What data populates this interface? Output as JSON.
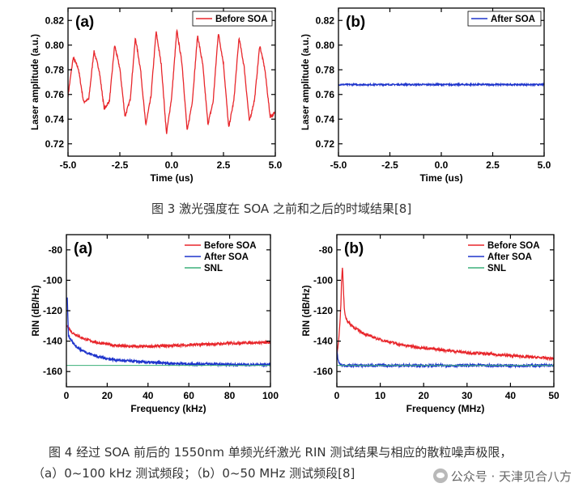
{
  "captions": {
    "fig3": "图 3  激光强度在 SOA 之前和之后的时域结果[8]",
    "fig4_line1": "图 4  经过 SOA 前后的 1550nm 单频光纤激光 RIN  测试结果与相应的散粒噪声极限，",
    "fig4_line2": "（a）0~100 kHz  测试频段；（b）0~50 MHz  测试频段[8]"
  },
  "watermark": {
    "icon": "wechat-public-account-icon",
    "text": "公众号 · 天津见合八方"
  },
  "colors": {
    "red": "#e8262b",
    "blue": "#1f35cc",
    "green": "#3cb17a",
    "axis": "#000000"
  },
  "chart_data": [
    {
      "id": "fig3a",
      "type": "line",
      "panel_label": "(a)",
      "xlabel": "Time (us)",
      "ylabel": "Laser amplitude (a.u.)",
      "xlim": [
        -5.0,
        5.0
      ],
      "ylim": [
        0.71,
        0.83
      ],
      "xticks": [
        "-5.0",
        "-2.5",
        "0.0",
        "2.5",
        "5.0"
      ],
      "xtick_values": [
        -5.0,
        -2.5,
        0.0,
        2.5,
        5.0
      ],
      "yticks": [
        "0.72",
        "0.74",
        "0.76",
        "0.78",
        "0.80",
        "0.82"
      ],
      "ytick_values": [
        0.72,
        0.74,
        0.76,
        0.78,
        0.8,
        0.82
      ],
      "legend": "top-right",
      "series": [
        {
          "name": "Before SOA",
          "color": "#e8262b",
          "x": [
            -5.0,
            -4.75,
            -4.5,
            -4.25,
            -4.0,
            -3.75,
            -3.5,
            -3.25,
            -3.0,
            -2.75,
            -2.5,
            -2.25,
            -2.0,
            -1.75,
            -1.5,
            -1.25,
            -1.0,
            -0.75,
            -0.5,
            -0.25,
            0.0,
            0.25,
            0.5,
            0.75,
            1.0,
            1.25,
            1.5,
            1.75,
            2.0,
            2.25,
            2.5,
            2.75,
            3.0,
            3.25,
            3.5,
            3.75,
            4.0,
            4.25,
            4.5,
            4.75,
            5.0
          ],
          "y": [
            0.759,
            0.79,
            0.781,
            0.754,
            0.756,
            0.795,
            0.78,
            0.748,
            0.755,
            0.8,
            0.781,
            0.742,
            0.756,
            0.806,
            0.78,
            0.735,
            0.758,
            0.811,
            0.784,
            0.728,
            0.758,
            0.812,
            0.785,
            0.73,
            0.755,
            0.808,
            0.784,
            0.736,
            0.754,
            0.81,
            0.785,
            0.733,
            0.755,
            0.806,
            0.782,
            0.738,
            0.756,
            0.8,
            0.78,
            0.742,
            0.745
          ]
        }
      ]
    },
    {
      "id": "fig3b",
      "type": "line",
      "panel_label": "(b)",
      "xlabel": "Time (us)",
      "ylabel": "Laser amplitude (a.u.)",
      "xlim": [
        -5.0,
        5.0
      ],
      "ylim": [
        0.71,
        0.83
      ],
      "xticks": [
        "-5.0",
        "-2.5",
        "0.0",
        "2.5",
        "5.0"
      ],
      "xtick_values": [
        -5.0,
        -2.5,
        0.0,
        2.5,
        5.0
      ],
      "yticks": [
        "0.72",
        "0.74",
        "0.76",
        "0.78",
        "0.80",
        "0.82"
      ],
      "ytick_values": [
        0.72,
        0.74,
        0.76,
        0.78,
        0.8,
        0.82
      ],
      "legend": "top-right",
      "series": [
        {
          "name": "After SOA",
          "color": "#1f35cc",
          "x": [
            -5.0,
            5.0
          ],
          "y": [
            0.768,
            0.768
          ]
        }
      ]
    },
    {
      "id": "fig4a",
      "type": "line",
      "panel_label": "(a)",
      "xlabel": "Frequency (kHz)",
      "ylabel": "RIN (dB/Hz)",
      "xlim": [
        0,
        100
      ],
      "ylim": [
        -170,
        -70
      ],
      "xticks": [
        "0",
        "20",
        "40",
        "60",
        "80",
        "100"
      ],
      "xtick_values": [
        0,
        20,
        40,
        60,
        80,
        100
      ],
      "yticks": [
        "-160",
        "-140",
        "-120",
        "-100",
        "-80"
      ],
      "ytick_values": [
        -160,
        -140,
        -120,
        -100,
        -80
      ],
      "legend": "top-right",
      "series": [
        {
          "name": "Before SOA",
          "color": "#e8262b",
          "x": [
            0.3,
            1,
            2,
            3,
            5,
            7,
            10,
            15,
            20,
            25,
            30,
            40,
            50,
            60,
            70,
            80,
            90,
            100
          ],
          "y": [
            -130,
            -131,
            -133,
            -134.5,
            -136,
            -137.5,
            -139,
            -141,
            -142,
            -143,
            -143.5,
            -143.5,
            -143,
            -142.5,
            -142,
            -141.5,
            -141,
            -141
          ]
        },
        {
          "name": "After SOA",
          "color": "#1f35cc",
          "x": [
            0.3,
            1,
            2,
            3,
            5,
            7,
            10,
            15,
            20,
            25,
            30,
            40,
            50,
            60,
            70,
            80,
            90,
            100
          ],
          "y": [
            -105,
            -136,
            -139,
            -141,
            -143.5,
            -145.5,
            -147.5,
            -150,
            -151.5,
            -152.5,
            -153,
            -154,
            -154.5,
            -155,
            -155,
            -155.5,
            -155.5,
            -155.5
          ]
        },
        {
          "name": "SNL",
          "color": "#3cb17a",
          "x": [
            0,
            100
          ],
          "y": [
            -156,
            -156
          ]
        }
      ]
    },
    {
      "id": "fig4b",
      "type": "line",
      "panel_label": "(b)",
      "xlabel": "Frequency (MHz)",
      "ylabel": "RIN (dB/Hz)",
      "xlim": [
        0,
        50
      ],
      "ylim": [
        -170,
        -70
      ],
      "xticks": [
        "0",
        "10",
        "20",
        "30",
        "40",
        "50"
      ],
      "xtick_values": [
        0,
        10,
        20,
        30,
        40,
        50
      ],
      "yticks": [
        "-160",
        "-140",
        "-120",
        "-100",
        "-80"
      ],
      "ytick_values": [
        -160,
        -140,
        -120,
        -100,
        -80
      ],
      "legend": "top-right",
      "series": [
        {
          "name": "Before SOA",
          "color": "#e8262b",
          "x": [
            0,
            0.3,
            0.6,
            0.9,
            1.1,
            1.3,
            1.5,
            1.7,
            2,
            2.5,
            3,
            4,
            5,
            7,
            10,
            15,
            20,
            25,
            30,
            35,
            40,
            45,
            50
          ],
          "y": [
            -150,
            -142,
            -133,
            -118,
            -100,
            -91,
            -105,
            -118,
            -124,
            -127,
            -128.5,
            -131,
            -133,
            -136,
            -139,
            -142.5,
            -144.5,
            -146,
            -147.5,
            -148.5,
            -149.5,
            -150.5,
            -151.5
          ]
        },
        {
          "name": "After SOA",
          "color": "#1f35cc",
          "x": [
            0,
            0.3,
            0.8,
            1.5,
            3,
            5,
            10,
            20,
            30,
            40,
            50
          ],
          "y": [
            -146,
            -153,
            -155.5,
            -156,
            -156,
            -156,
            -156,
            -156,
            -156,
            -156,
            -156
          ]
        },
        {
          "name": "SNL",
          "color": "#3cb17a",
          "x": [
            0,
            50
          ],
          "y": [
            -156,
            -156
          ]
        }
      ]
    }
  ]
}
